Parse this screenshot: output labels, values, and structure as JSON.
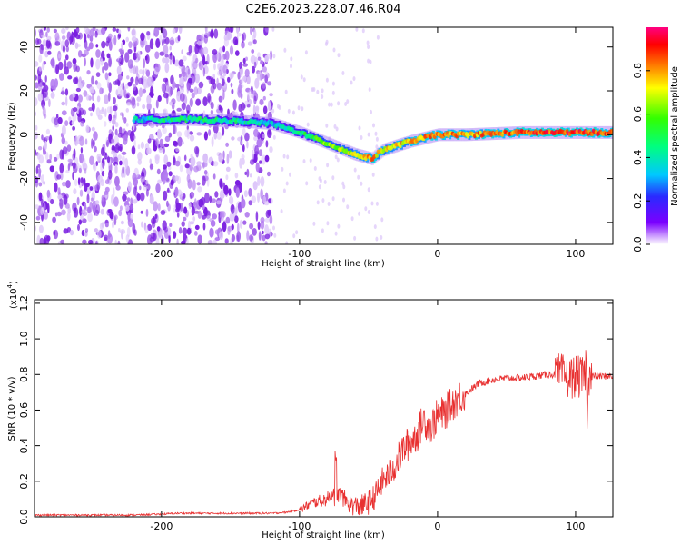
{
  "title": "C2E6.2023.228.07.46.R04",
  "colors": {
    "signal": "#e83030",
    "noise_purple": "#7a1fe0",
    "axis": "#000000"
  },
  "chart_data": [
    {
      "type": "heatmap",
      "name": "spectrogram",
      "xlabel": "Height of straight line (km)",
      "ylabel": "Frequency (Hz)",
      "xlim": [
        -292,
        127
      ],
      "ylim": [
        -50,
        49
      ],
      "xticks": [
        -200,
        -100,
        0,
        100
      ],
      "yticks": [
        -40,
        -20,
        0,
        20,
        40
      ],
      "colorbar": {
        "label": "Normalized spectral amplitude",
        "range": [
          0.0,
          1.0
        ],
        "ticks": [
          "0.0",
          "0.2",
          "0.4",
          "0.6",
          "0.8"
        ],
        "colormap": "rainbow"
      },
      "ridge": {
        "x": [
          -220,
          -180,
          -140,
          -120,
          -100,
          -80,
          -60,
          -48,
          -40,
          -20,
          0,
          20,
          60,
          100,
          127
        ],
        "y": [
          7,
          7,
          6,
          5,
          1,
          -4,
          -9,
          -11,
          -7,
          -3,
          0,
          0,
          1,
          1,
          1
        ],
        "amplitude": [
          0.35,
          0.45,
          0.4,
          0.35,
          0.45,
          0.6,
          0.7,
          0.8,
          0.7,
          0.75,
          0.85,
          0.8,
          0.85,
          0.9,
          0.85
        ]
      },
      "noise_region": {
        "x_range": [
          -292,
          -120
        ],
        "level": 0.2
      }
    },
    {
      "type": "line",
      "name": "snr",
      "xlabel": "Height of straight line (km)",
      "ylabel": "SNR (10 * v/v)",
      "multiplier": "(x10",
      "multiplier_exp": "4",
      "multiplier_close": ")",
      "xlim": [
        -292,
        127
      ],
      "ylim": [
        0.0,
        1.22
      ],
      "xticks": [
        -200,
        -100,
        0,
        100
      ],
      "yticks": [
        "0.0",
        "0.2",
        "0.4",
        "0.6",
        "0.8",
        "1.0",
        "1.2"
      ],
      "series": [
        {
          "x": [
            -292,
            -260,
            -220,
            -200,
            -190,
            -180,
            -160,
            -140,
            -120,
            -110,
            -100,
            -90,
            -80,
            -75,
            -70,
            -65,
            -60,
            -55,
            -50,
            -45,
            -40,
            -35,
            -30,
            -25,
            -20,
            -15,
            -10,
            -5,
            0,
            5,
            10,
            15,
            20,
            25,
            30,
            40,
            50,
            60,
            70,
            80,
            85,
            90,
            95,
            100,
            105,
            108,
            110,
            115,
            120,
            127
          ],
          "y": [
            0.01,
            0.01,
            0.01,
            0.015,
            0.02,
            0.02,
            0.02,
            0.02,
            0.02,
            0.025,
            0.04,
            0.08,
            0.1,
            0.14,
            0.12,
            0.08,
            0.06,
            0.06,
            0.08,
            0.12,
            0.2,
            0.24,
            0.3,
            0.38,
            0.42,
            0.46,
            0.55,
            0.5,
            0.57,
            0.58,
            0.63,
            0.67,
            0.69,
            0.72,
            0.75,
            0.77,
            0.78,
            0.78,
            0.79,
            0.8,
            0.8,
            0.8,
            0.78,
            0.79,
            0.78,
            0.8,
            0.79,
            0.79,
            0.79,
            0.79
          ]
        }
      ]
    }
  ]
}
